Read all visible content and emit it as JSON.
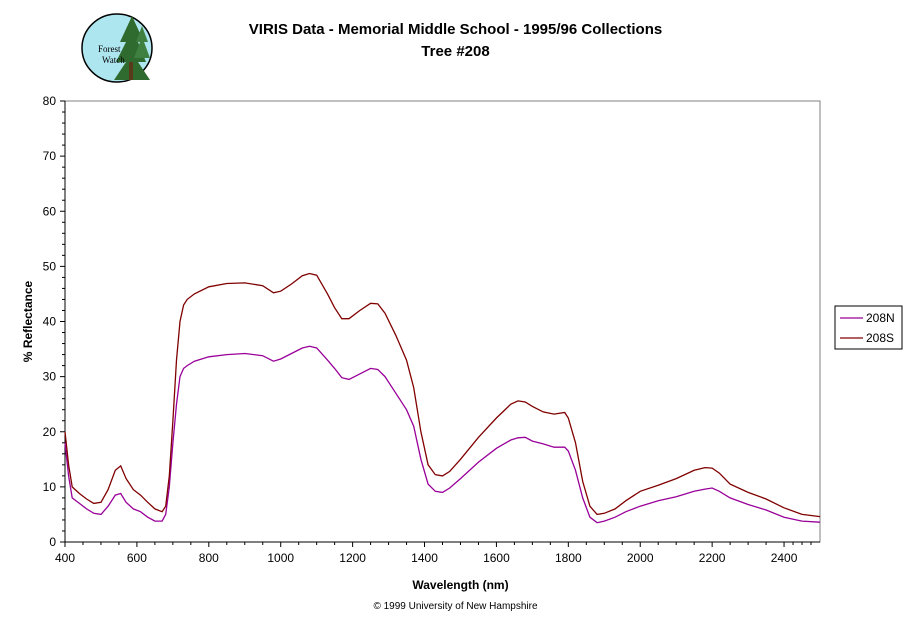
{
  "logo": {
    "text_line1": "Forest",
    "text_line2": "Watch"
  },
  "chart_data": {
    "type": "line",
    "title": "VIRIS Data - Memorial Middle School - 1995/96 Collections",
    "subtitle": "Tree #208",
    "xlabel": "Wavelength (nm)",
    "ylabel": "% Reflectance",
    "xlim": [
      400,
      2500
    ],
    "ylim": [
      0,
      80
    ],
    "x_ticks": [
      400,
      600,
      800,
      1000,
      1200,
      1400,
      1600,
      1800,
      2000,
      2200,
      2400
    ],
    "y_ticks": [
      0,
      10,
      20,
      30,
      40,
      50,
      60,
      70,
      80
    ],
    "grid": false,
    "legend_position": "right",
    "series": [
      {
        "name": "208N",
        "color": "#990099",
        "x": [
          400,
          410,
          420,
          440,
          460,
          480,
          500,
          520,
          540,
          555,
          570,
          590,
          610,
          630,
          650,
          670,
          680,
          690,
          700,
          710,
          720,
          730,
          740,
          760,
          800,
          850,
          900,
          950,
          980,
          1000,
          1030,
          1060,
          1080,
          1100,
          1130,
          1150,
          1170,
          1190,
          1220,
          1250,
          1270,
          1290,
          1320,
          1350,
          1370,
          1390,
          1410,
          1430,
          1450,
          1470,
          1500,
          1550,
          1600,
          1640,
          1660,
          1680,
          1700,
          1730,
          1760,
          1790,
          1800,
          1820,
          1840,
          1860,
          1880,
          1900,
          1930,
          1960,
          2000,
          2050,
          2100,
          2150,
          2180,
          2200,
          2220,
          2250,
          2300,
          2350,
          2400,
          2450,
          2500
        ],
        "values": [
          18,
          12,
          8,
          7,
          6,
          5.2,
          5,
          6.5,
          8.5,
          8.8,
          7.2,
          6,
          5.5,
          4.5,
          3.8,
          3.8,
          5,
          10,
          18,
          25,
          30,
          31.5,
          32,
          32.8,
          33.6,
          34,
          34.2,
          33.8,
          32.8,
          33.2,
          34.2,
          35.2,
          35.5,
          35.2,
          33,
          31.5,
          29.8,
          29.5,
          30.5,
          31.5,
          31.3,
          30,
          27,
          24,
          21,
          15,
          10.5,
          9.2,
          9,
          9.8,
          11.5,
          14.5,
          17,
          18.5,
          18.9,
          19,
          18.3,
          17.8,
          17.2,
          17.2,
          16.5,
          13,
          8,
          4.5,
          3.5,
          3.8,
          4.5,
          5.5,
          6.5,
          7.5,
          8.2,
          9.2,
          9.6,
          9.8,
          9.2,
          8,
          6.8,
          5.8,
          4.5,
          3.8,
          3.6
        ]
      },
      {
        "name": "208S",
        "color": "#800000",
        "x": [
          400,
          410,
          420,
          440,
          460,
          480,
          500,
          520,
          540,
          555,
          570,
          590,
          610,
          630,
          650,
          670,
          680,
          690,
          700,
          710,
          720,
          730,
          740,
          760,
          800,
          850,
          900,
          950,
          980,
          1000,
          1030,
          1060,
          1080,
          1100,
          1130,
          1150,
          1170,
          1190,
          1220,
          1250,
          1270,
          1290,
          1320,
          1350,
          1370,
          1390,
          1410,
          1430,
          1450,
          1470,
          1500,
          1550,
          1600,
          1640,
          1660,
          1680,
          1700,
          1730,
          1760,
          1790,
          1800,
          1820,
          1840,
          1860,
          1880,
          1900,
          1930,
          1960,
          2000,
          2050,
          2100,
          2150,
          2180,
          2200,
          2220,
          2250,
          2300,
          2350,
          2400,
          2450,
          2500
        ],
        "values": [
          20,
          14,
          10,
          8.8,
          7.8,
          7,
          7.2,
          9.5,
          13,
          13.8,
          11.5,
          9.5,
          8.5,
          7.2,
          6,
          5.5,
          6.5,
          12,
          22,
          33,
          40,
          43,
          44,
          45,
          46.3,
          46.9,
          47,
          46.5,
          45.2,
          45.5,
          46.8,
          48.3,
          48.7,
          48.4,
          45,
          42.5,
          40.5,
          40.5,
          42,
          43.3,
          43.2,
          41.5,
          37.5,
          33,
          28,
          20,
          14,
          12.2,
          12,
          12.8,
          15,
          19,
          22.5,
          25,
          25.6,
          25.4,
          24.6,
          23.6,
          23.2,
          23.5,
          22.5,
          18,
          11,
          6.5,
          5,
          5.2,
          6,
          7.5,
          9.2,
          10.3,
          11.5,
          13,
          13.5,
          13.4,
          12.5,
          10.5,
          9,
          7.8,
          6.2,
          5,
          4.6
        ]
      }
    ]
  },
  "footer": "© 1999 University of New Hampshire"
}
